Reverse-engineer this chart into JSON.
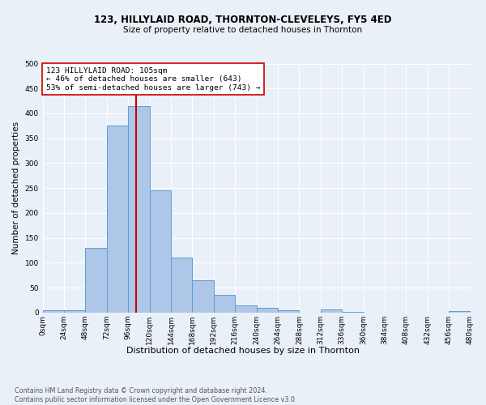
{
  "title_line1": "123, HILLYLAID ROAD, THORNTON-CLEVELEYS, FY5 4ED",
  "title_line2": "Size of property relative to detached houses in Thornton",
  "xlabel": "Distribution of detached houses by size in Thornton",
  "ylabel": "Number of detached properties",
  "bin_edges": [
    0,
    24,
    48,
    72,
    96,
    120,
    144,
    168,
    192,
    216,
    240,
    264,
    288,
    312,
    336,
    360,
    384,
    408,
    432,
    456,
    480
  ],
  "bar_heights": [
    5,
    5,
    130,
    375,
    415,
    245,
    110,
    65,
    35,
    15,
    9,
    5,
    0,
    6,
    2,
    0,
    0,
    0,
    0,
    3
  ],
  "bar_color": "#aec6e8",
  "bar_edgecolor": "#5a9fd4",
  "vertical_line_x": 105,
  "vertical_line_color": "#cc0000",
  "annotation_text": "123 HILLYLAID ROAD: 105sqm\n← 46% of detached houses are smaller (643)\n53% of semi-detached houses are larger (743) →",
  "annotation_box_color": "white",
  "annotation_box_edgecolor": "#cc0000",
  "ylim": [
    0,
    500
  ],
  "yticks": [
    0,
    50,
    100,
    150,
    200,
    250,
    300,
    350,
    400,
    450,
    500
  ],
  "bg_color": "#eaf0f8",
  "footer_text": "Contains HM Land Registry data © Crown copyright and database right 2024.\nContains public sector information licensed under the Open Government Licence v3.0.",
  "grid_color": "white",
  "title1_fontsize": 8.5,
  "title2_fontsize": 7.5,
  "ylabel_fontsize": 7.5,
  "xlabel_fontsize": 8.0,
  "annot_fontsize": 6.8,
  "tick_fontsize": 6.5,
  "footer_fontsize": 5.8
}
